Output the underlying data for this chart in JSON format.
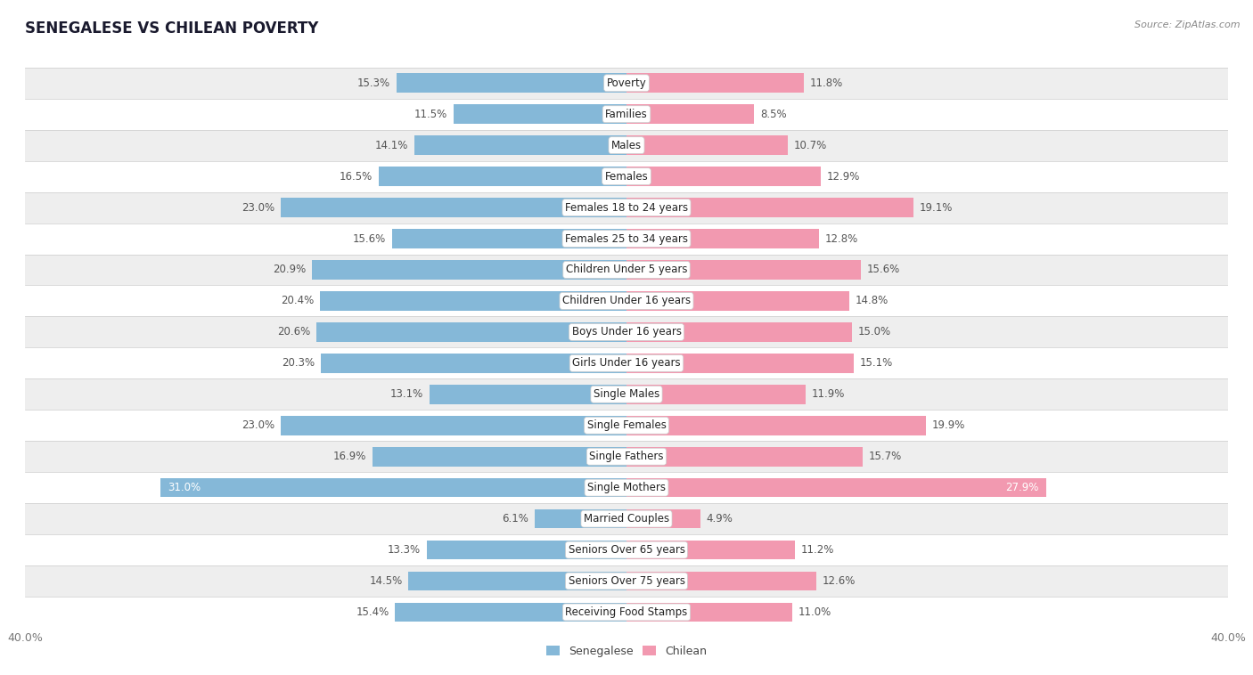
{
  "title": "SENEGALESE VS CHILEAN POVERTY",
  "source": "Source: ZipAtlas.com",
  "categories": [
    "Poverty",
    "Families",
    "Males",
    "Females",
    "Females 18 to 24 years",
    "Females 25 to 34 years",
    "Children Under 5 years",
    "Children Under 16 years",
    "Boys Under 16 years",
    "Girls Under 16 years",
    "Single Males",
    "Single Females",
    "Single Fathers",
    "Single Mothers",
    "Married Couples",
    "Seniors Over 65 years",
    "Seniors Over 75 years",
    "Receiving Food Stamps"
  ],
  "senegalese": [
    15.3,
    11.5,
    14.1,
    16.5,
    23.0,
    15.6,
    20.9,
    20.4,
    20.6,
    20.3,
    13.1,
    23.0,
    16.9,
    31.0,
    6.1,
    13.3,
    14.5,
    15.4
  ],
  "chilean": [
    11.8,
    8.5,
    10.7,
    12.9,
    19.1,
    12.8,
    15.6,
    14.8,
    15.0,
    15.1,
    11.9,
    19.9,
    15.7,
    27.9,
    4.9,
    11.2,
    12.6,
    11.0
  ],
  "senegalese_color": "#85b8d8",
  "chilean_color": "#f299b0",
  "background_color": "#ffffff",
  "row_bg_odd": "#ffffff",
  "row_bg_even": "#eeeeee",
  "axis_max": 40.0,
  "bar_height": 0.62,
  "label_fontsize": 8.5,
  "title_fontsize": 12,
  "legend_labels": [
    "Senegalese",
    "Chilean"
  ],
  "label_color_normal": "#555555",
  "label_color_inside": "#ffffff",
  "cat_label_fontsize": 8.5
}
